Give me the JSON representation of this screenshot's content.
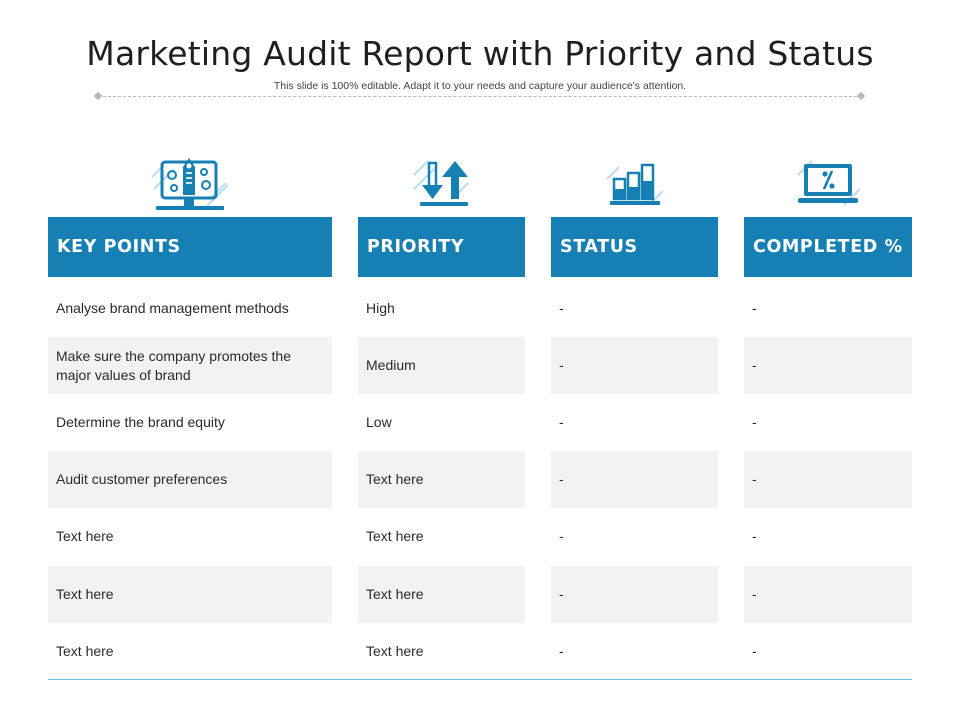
{
  "title": "Marketing Audit Report with Priority and Status",
  "subtitle": "This slide is 100% editable. Adapt it to your needs and capture your audience's attention.",
  "colors": {
    "header": "#1680b5",
    "shade": "#f2f2f2",
    "icon": "#1680b5"
  },
  "columns": [
    {
      "header": "KEY POINTS",
      "icon": "monitor-settings-icon"
    },
    {
      "header": "PRIORITY",
      "icon": "up-down-arrows-icon"
    },
    {
      "header": "STATUS",
      "icon": "bar-chart-icon"
    },
    {
      "header": "COMPLETED %",
      "icon": "laptop-percent-icon"
    }
  ],
  "rows": [
    [
      "Analyse brand management methods",
      "High",
      "-",
      "-"
    ],
    [
      "Make sure the company promotes the major values of brand",
      "Medium",
      "-",
      "-"
    ],
    [
      "Determine the brand equity",
      "Low",
      "-",
      "-"
    ],
    [
      "Audit customer preferences",
      "Text here",
      "-",
      "-"
    ],
    [
      "Text here",
      "Text here",
      "-",
      "-"
    ],
    [
      "Text here",
      "Text here",
      "-",
      "-"
    ],
    [
      "Text here",
      "Text here",
      "-",
      "-"
    ]
  ]
}
